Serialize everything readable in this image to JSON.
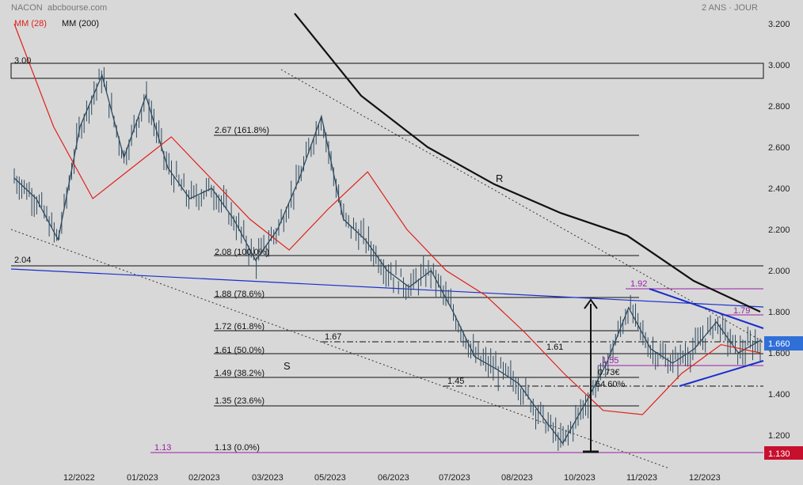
{
  "header": {
    "symbol": "NACON",
    "source": "abcbourse.com",
    "period": "2 ANS · JOUR",
    "legend": [
      {
        "label": "MM (28)",
        "color": "#e0201a"
      },
      {
        "label": "MM (200)",
        "color": "#111111"
      }
    ]
  },
  "chart_data": {
    "type": "ohlc",
    "title": "",
    "xlabel": "",
    "ylabel": "",
    "ylim": [
      1.08,
      3.3
    ],
    "x_ticks": [
      "12/2022",
      "01/2023",
      "02/2023",
      "03/2023",
      "05/2023",
      "06/2023",
      "07/2023",
      "08/2023",
      "10/2023",
      "11/2023",
      "12/2023"
    ],
    "y_ticks": [
      "1.200",
      "1.400",
      "1.600",
      "1.800",
      "2.000",
      "2.200",
      "2.400",
      "2.600",
      "2.800",
      "3.000",
      "3.200"
    ],
    "last_price": "1.660",
    "low_price": "1.130",
    "price_path": [
      [
        "11/2022",
        2.45
      ],
      [
        "12/2022",
        2.35
      ],
      [
        "12/2022",
        2.15
      ],
      [
        "12/2022",
        2.7
      ],
      [
        "12/2022",
        2.95
      ],
      [
        "01/2023",
        2.55
      ],
      [
        "01/2023",
        2.85
      ],
      [
        "01/2023",
        2.5
      ],
      [
        "02/2023",
        2.35
      ],
      [
        "02/2023",
        2.4
      ],
      [
        "03/2023",
        2.25
      ],
      [
        "03/2023",
        2.05
      ],
      [
        "03/2023",
        2.2
      ],
      [
        "05/2023",
        2.45
      ],
      [
        "05/2023",
        2.75
      ],
      [
        "05/2023",
        2.25
      ],
      [
        "06/2023",
        2.15
      ],
      [
        "06/2023",
        2.0
      ],
      [
        "07/2023",
        1.92
      ],
      [
        "07/2023",
        2.0
      ],
      [
        "07/2023",
        1.8
      ],
      [
        "08/2023",
        1.58
      ],
      [
        "08/2023",
        1.52
      ],
      [
        "08/2023",
        1.45
      ],
      [
        "10/2023",
        1.3
      ],
      [
        "10/2023",
        1.16
      ],
      [
        "11/2023",
        1.35
      ],
      [
        "11/2023",
        1.55
      ],
      [
        "11/2023",
        1.82
      ],
      [
        "11/2023",
        1.62
      ],
      [
        "12/2023",
        1.55
      ],
      [
        "12/2023",
        1.62
      ],
      [
        "12/2023",
        1.75
      ],
      [
        "12/2023",
        1.6
      ],
      [
        "12/2023",
        1.66
      ]
    ],
    "ma28_path": [
      [
        "11/2022",
        3.2
      ],
      [
        "12/2022",
        2.7
      ],
      [
        "12/2022",
        2.35
      ],
      [
        "01/2023",
        2.5
      ],
      [
        "01/2023",
        2.65
      ],
      [
        "02/2023",
        2.45
      ],
      [
        "03/2023",
        2.25
      ],
      [
        "03/2023",
        2.1
      ],
      [
        "05/2023",
        2.3
      ],
      [
        "05/2023",
        2.48
      ],
      [
        "06/2023",
        2.2
      ],
      [
        "07/2023",
        2.0
      ],
      [
        "07/2023",
        1.88
      ],
      [
        "08/2023",
        1.7
      ],
      [
        "10/2023",
        1.5
      ],
      [
        "10/2023",
        1.32
      ],
      [
        "11/2023",
        1.3
      ],
      [
        "11/2023",
        1.5
      ],
      [
        "12/2023",
        1.64
      ],
      [
        "12/2023",
        1.6
      ]
    ],
    "ma200_path": [
      [
        "03/2023",
        3.25
      ],
      [
        "05/2023",
        2.85
      ],
      [
        "06/2023",
        2.6
      ],
      [
        "07/2023",
        2.42
      ],
      [
        "08/2023",
        2.28
      ],
      [
        "10/2023",
        2.17
      ],
      [
        "11/2023",
        1.95
      ],
      [
        "12/2023",
        1.8
      ]
    ],
    "levels": [
      {
        "value": 3.0,
        "label": "3.00"
      },
      {
        "value": 2.67,
        "label": "2.67  (161.8%)"
      },
      {
        "value": 2.08,
        "label": "2.08  (100.0%)"
      },
      {
        "value": 2.04,
        "label": "2.04"
      },
      {
        "value": 1.88,
        "label": "1.88  (78.6%)"
      },
      {
        "value": 1.72,
        "label": "1.72  (61.8%)"
      },
      {
        "value": 1.67,
        "label": "1.67"
      },
      {
        "value": 1.61,
        "label": "1.61  (50.0%)"
      },
      {
        "value": 1.61,
        "label": "1.61"
      },
      {
        "value": 1.55,
        "label": "1.55"
      },
      {
        "value": 1.49,
        "label": "1.49  (38.2%)"
      },
      {
        "value": 1.45,
        "label": "1.45"
      },
      {
        "value": 1.35,
        "label": "1.35  (23.6%)"
      },
      {
        "value": 1.13,
        "label": "1.13  (0.0%)"
      },
      {
        "value": 1.13,
        "label": "1.13"
      },
      {
        "value": 1.92,
        "label": "1.92"
      },
      {
        "value": 1.79,
        "label": "1.79"
      }
    ],
    "annotations": [
      "R",
      "S",
      "0.73€",
      "64.60%"
    ]
  }
}
